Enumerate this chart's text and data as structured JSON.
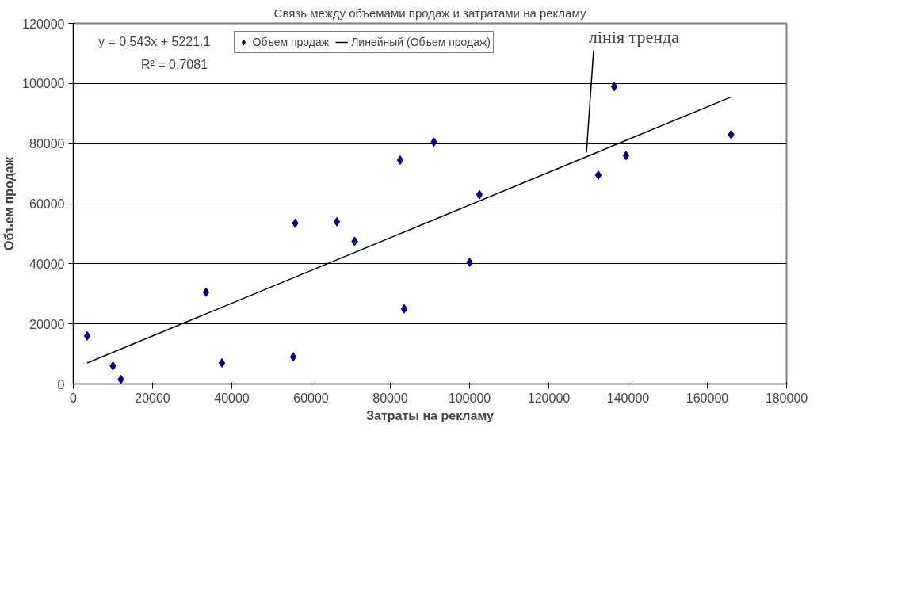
{
  "chart_data": {
    "type": "scatter",
    "title": "Связь между объемами продаж и затратами на рекламу",
    "xlabel": "Затраты на рекламу",
    "ylabel": "Объем продаж",
    "series": [
      {
        "name": "Объем продаж",
        "color": "#000080",
        "marker": "diamond",
        "x": [
          3500,
          10000,
          12000,
          33500,
          37500,
          55500,
          56000,
          66500,
          71000,
          82500,
          83500,
          91000,
          100000,
          102500,
          132500,
          136500,
          139500,
          166000
        ],
        "values": [
          16000,
          6000,
          1500,
          30500,
          7000,
          9000,
          53500,
          54000,
          47500,
          74500,
          25000,
          80500,
          40500,
          63000,
          69500,
          99000,
          76000,
          83000
        ]
      },
      {
        "name": "Линейный (Объем продаж)",
        "type": "line",
        "color": "#000000",
        "line_style": "solid",
        "x": [
          3500,
          166000
        ],
        "values": [
          7000,
          95500
        ]
      }
    ],
    "annotations": [
      "y = 0.543x + 5221.1",
      "R² = 0.7081",
      {
        "text": "лінія тренда",
        "x": 129500,
        "y": 77000
      }
    ],
    "xlim": [
      0,
      180000
    ],
    "ylim": [
      0,
      120000
    ],
    "xticks": [
      0,
      20000,
      40000,
      60000,
      80000,
      100000,
      120000,
      140000,
      160000,
      180000
    ],
    "yticks": [
      0,
      20000,
      40000,
      60000,
      80000,
      100000,
      120000
    ],
    "grid": "y",
    "legend": "top"
  }
}
